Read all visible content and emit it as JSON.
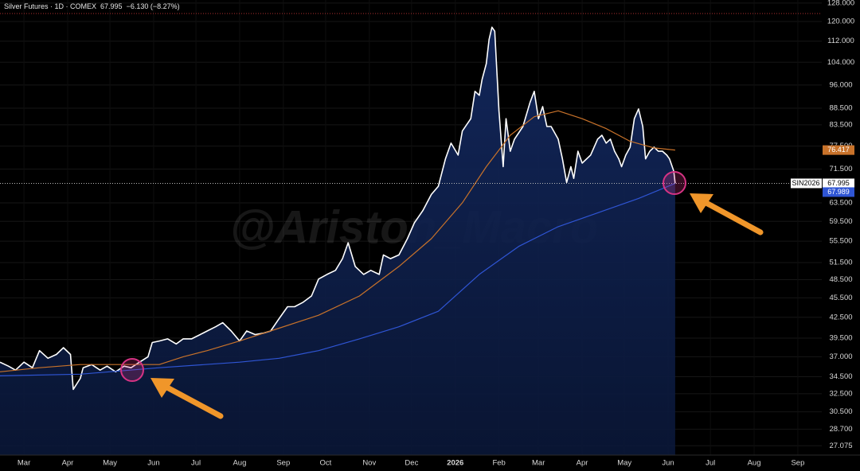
{
  "chart_data": {
    "type": "line",
    "title": "Silver Futures · 1D · COMEX",
    "change": "−6.130 (−8.27%)",
    "ticker": "SIN2026",
    "watermark": "@Ariston_Macro",
    "log_scale": true,
    "grid": true,
    "area_color": "#0d1d4a",
    "ylim": [
      26.2,
      129.4
    ],
    "yticks": [
      {
        "value": 128,
        "label": "128.000"
      },
      {
        "value": 120,
        "label": "120.000"
      },
      {
        "value": 112,
        "label": "112.000"
      },
      {
        "value": 104,
        "label": "104.000"
      },
      {
        "value": 96,
        "label": "96.000"
      },
      {
        "value": 88.5,
        "label": "88.500"
      },
      {
        "value": 83.5,
        "label": "83.500"
      },
      {
        "value": 77.5,
        "label": "77.500"
      },
      {
        "value": 71.5,
        "label": "71.500"
      },
      {
        "value": 63.5,
        "label": "63.500"
      },
      {
        "value": 59.5,
        "label": "59.500"
      },
      {
        "value": 55.5,
        "label": "55.500"
      },
      {
        "value": 51.5,
        "label": "51.500"
      },
      {
        "value": 48.5,
        "label": "48.500"
      },
      {
        "value": 45.5,
        "label": "45.500"
      },
      {
        "value": 42.5,
        "label": "42.500"
      },
      {
        "value": 39.5,
        "label": "39.500"
      },
      {
        "value": 37,
        "label": "37.000"
      },
      {
        "value": 34.5,
        "label": "34.500"
      },
      {
        "value": 32.5,
        "label": "32.500"
      },
      {
        "value": 30.5,
        "label": "30.500"
      },
      {
        "value": 28.7,
        "label": "28.700"
      },
      {
        "value": 27.075,
        "label": "27.075"
      }
    ],
    "xlim": [
      -17,
      566
    ],
    "xticks": [
      {
        "value": 0,
        "label": "Mar"
      },
      {
        "value": 31,
        "label": "Apr"
      },
      {
        "value": 61,
        "label": "May"
      },
      {
        "value": 92,
        "label": "Jun"
      },
      {
        "value": 122,
        "label": "Jul"
      },
      {
        "value": 153,
        "label": "Aug"
      },
      {
        "value": 184,
        "label": "Sep"
      },
      {
        "value": 214,
        "label": "Oct"
      },
      {
        "value": 245,
        "label": "Nov"
      },
      {
        "value": 275,
        "label": "Dec"
      },
      {
        "value": 306,
        "label": "2026"
      },
      {
        "value": 337,
        "label": "Feb"
      },
      {
        "value": 365,
        "label": "Mar"
      },
      {
        "value": 396,
        "label": "Apr"
      },
      {
        "value": 426,
        "label": "May"
      },
      {
        "value": 457,
        "label": "Jun"
      },
      {
        "value": 487,
        "label": "Jul"
      },
      {
        "value": 518,
        "label": "Aug"
      },
      {
        "value": 549,
        "label": "Sep"
      }
    ],
    "series": [
      {
        "color": "#ffffff",
        "x": [
          -17,
          -11,
          -6,
          0,
          6,
          11,
          17,
          23,
          28,
          33,
          35,
          40,
          42,
          48,
          54,
          59,
          65,
          71,
          76,
          82,
          88,
          91,
          96,
          102,
          108,
          113,
          119,
          125,
          130,
          136,
          141,
          147,
          153,
          158,
          164,
          170,
          175,
          181,
          187,
          192,
          198,
          204,
          209,
          215,
          221,
          226,
          230,
          235,
          241,
          246,
          252,
          255,
          260,
          266,
          272,
          277,
          283,
          289,
          294,
          299,
          303,
          308,
          311,
          317,
          320,
          323,
          325,
          328,
          330,
          332,
          334,
          337,
          340,
          342,
          345,
          348,
          354,
          359,
          362,
          365,
          368,
          371,
          374,
          379,
          382,
          385,
          388,
          390,
          393,
          396,
          402,
          407,
          410,
          413,
          416,
          419,
          422,
          424,
          427,
          430,
          433,
          436,
          439,
          441,
          444,
          447,
          450,
          453,
          456,
          458,
          461,
          462
        ],
        "values": [
          36.3,
          35.8,
          35.3,
          36.3,
          35.6,
          37.8,
          36.8,
          37.3,
          38.2,
          37.3,
          33.0,
          34.3,
          35.6,
          36.0,
          35.3,
          35.8,
          35.1,
          35.8,
          35.6,
          36.3,
          37.0,
          38.9,
          39.1,
          39.4,
          38.7,
          39.4,
          39.4,
          40.0,
          40.5,
          41.1,
          41.7,
          40.5,
          39.1,
          40.5,
          40.0,
          40.2,
          40.5,
          42.3,
          44.1,
          44.1,
          44.8,
          45.8,
          48.6,
          49.4,
          50.1,
          52.2,
          55.2,
          50.8,
          49.4,
          50.1,
          49.4,
          52.9,
          52.2,
          52.9,
          56.0,
          59.2,
          61.8,
          65.4,
          67.3,
          74.1,
          78.3,
          75.1,
          81.7,
          85.3,
          93.9,
          92.6,
          97.9,
          103.5,
          112.7,
          117.6,
          116.0,
          87.7,
          72.1,
          85.3,
          76.1,
          79.4,
          83.0,
          90.3,
          93.9,
          85.3,
          89.0,
          83.0,
          83.0,
          79.4,
          74.1,
          68.2,
          72.1,
          69.2,
          76.1,
          73.0,
          75.1,
          79.4,
          80.5,
          78.3,
          79.4,
          76.1,
          74.1,
          72.1,
          75.1,
          77.2,
          85.3,
          88.3,
          83.0,
          74.1,
          76.1,
          77.2,
          76.1,
          76.1,
          75.1,
          74.1,
          71.0,
          67.995
        ]
      },
      {
        "color": "#c8722a",
        "x": [
          -17,
          11,
          40,
          68,
          96,
          113,
          130,
          153,
          181,
          209,
          238,
          266,
          289,
          311,
          328,
          345,
          362,
          379,
          396,
          413,
          430,
          447,
          462
        ],
        "values": [
          35.1,
          35.6,
          36.0,
          36.0,
          36.0,
          37.0,
          37.8,
          39.1,
          40.9,
          42.8,
          45.8,
          50.8,
          56.0,
          63.5,
          72.1,
          80.5,
          85.9,
          87.7,
          85.3,
          82.4,
          78.8,
          77.0,
          76.417
        ]
      },
      {
        "color": "#2f55d4",
        "x": [
          -17,
          40,
          96,
          153,
          181,
          209,
          238,
          266,
          294,
          323,
          351,
          379,
          407,
          436,
          462
        ],
        "values": [
          34.6,
          34.8,
          35.6,
          36.3,
          36.8,
          37.8,
          39.4,
          41.1,
          43.4,
          49.4,
          54.5,
          58.4,
          61.3,
          64.5,
          67.989
        ]
      }
    ]
  }
}
